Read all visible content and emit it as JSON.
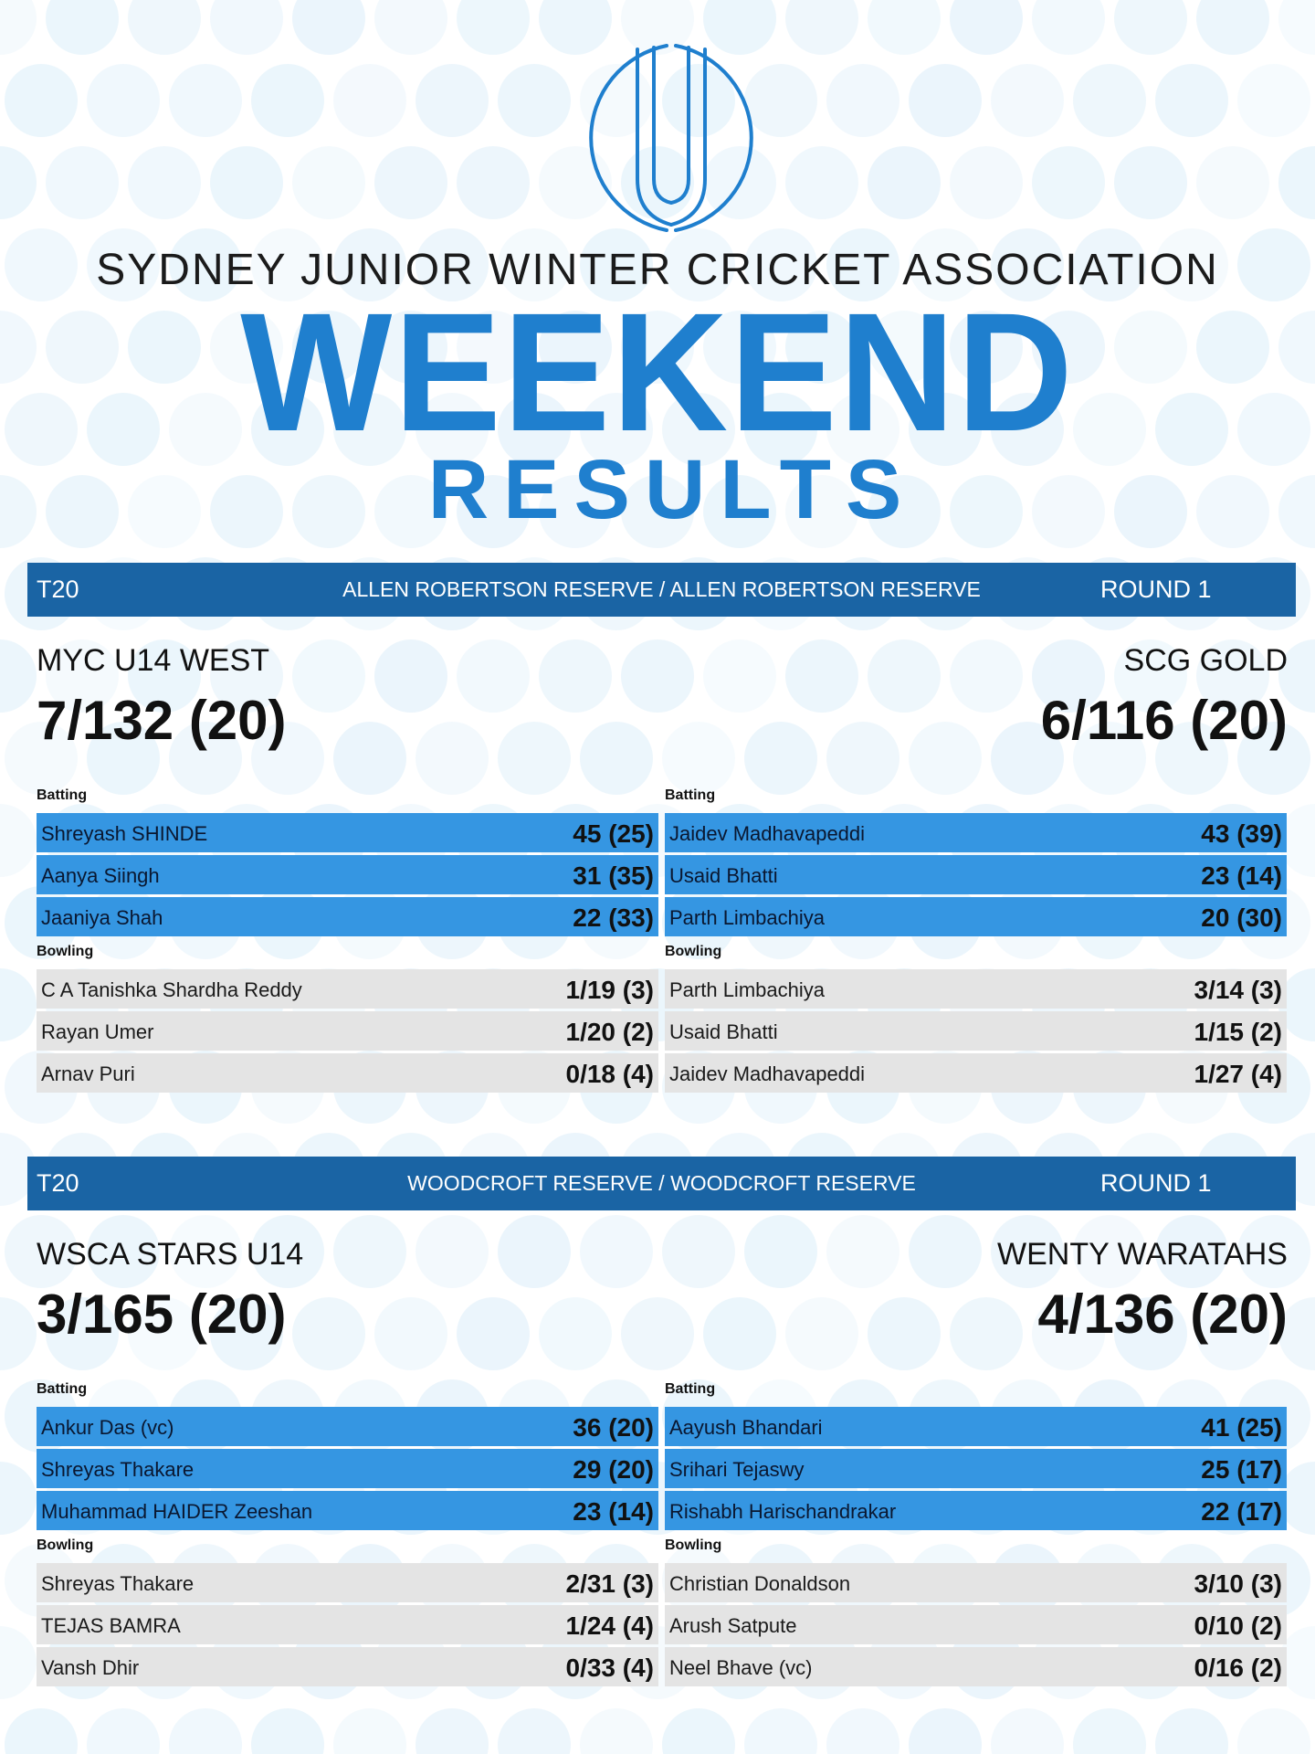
{
  "header": {
    "association": "SYDNEY JUNIOR WINTER CRICKET ASSOCIATION",
    "title": "WEEKEND",
    "subtitle": "RESULTS",
    "logo_icon": "sjwca-monogram-logo"
  },
  "colors": {
    "brand_blue": "#1f7fce",
    "bar_blue": "#1a64a4",
    "batting_row": "#3596e2",
    "bowling_row": "#e4e4e4",
    "dots": "#e6f3fb"
  },
  "matches": [
    {
      "format": "T20",
      "venue": "ALLEN ROBERTSON RESERVE / ALLEN ROBERTSON RESERVE",
      "round": "ROUND 1",
      "team_left": {
        "name": "MYC U14 WEST",
        "score": "7/132 (20)",
        "batting_label": "Batting",
        "bowling_label": "Bowling",
        "batting": [
          {
            "name": "Shreyash SHINDE",
            "figure": "45 (25)"
          },
          {
            "name": "Aanya Siingh",
            "figure": "31 (35)"
          },
          {
            "name": "Jaaniya Shah",
            "figure": "22 (33)"
          }
        ],
        "bowling": [
          {
            "name": "C A Tanishka Shardha Reddy",
            "figure": "1/19 (3)"
          },
          {
            "name": "Rayan Umer",
            "figure": "1/20 (2)"
          },
          {
            "name": "Arnav Puri",
            "figure": "0/18 (4)"
          }
        ]
      },
      "team_right": {
        "name": "SCG GOLD",
        "score": "6/116 (20)",
        "batting_label": "Batting",
        "bowling_label": "Bowling",
        "batting": [
          {
            "name": "Jaidev Madhavapeddi",
            "figure": "43 (39)"
          },
          {
            "name": "Usaid Bhatti",
            "figure": "23 (14)"
          },
          {
            "name": "Parth Limbachiya",
            "figure": "20 (30)"
          }
        ],
        "bowling": [
          {
            "name": "Parth Limbachiya",
            "figure": "3/14 (3)"
          },
          {
            "name": "Usaid Bhatti",
            "figure": "1/15 (2)"
          },
          {
            "name": "Jaidev Madhavapeddi",
            "figure": "1/27 (4)"
          }
        ]
      }
    },
    {
      "format": "T20",
      "venue": "WOODCROFT RESERVE / WOODCROFT RESERVE",
      "round": "ROUND 1",
      "team_left": {
        "name": "WSCA STARS U14",
        "score": "3/165 (20)",
        "batting_label": "Batting",
        "bowling_label": "Bowling",
        "batting": [
          {
            "name": "Ankur Das (vc)",
            "figure": "36 (20)"
          },
          {
            "name": "Shreyas Thakare",
            "figure": "29 (20)"
          },
          {
            "name": "Muhammad HAIDER Zeeshan",
            "figure": "23 (14)"
          }
        ],
        "bowling": [
          {
            "name": "Shreyas Thakare",
            "figure": "2/31 (3)"
          },
          {
            "name": "TEJAS BAMRA",
            "figure": "1/24 (4)"
          },
          {
            "name": "Vansh Dhir",
            "figure": "0/33 (4)"
          }
        ]
      },
      "team_right": {
        "name": "WENTY WARATAHS",
        "score": "4/136 (20)",
        "batting_label": "Batting",
        "bowling_label": "Bowling",
        "batting": [
          {
            "name": "Aayush Bhandari",
            "figure": "41 (25)"
          },
          {
            "name": "Srihari Tejaswy",
            "figure": "25 (17)"
          },
          {
            "name": "Rishabh Harischandrakar",
            "figure": "22 (17)"
          }
        ],
        "bowling": [
          {
            "name": "Christian Donaldson",
            "figure": "3/10 (3)"
          },
          {
            "name": "Arush Satpute",
            "figure": "0/10 (2)"
          },
          {
            "name": "Neel Bhave (vc)",
            "figure": "0/16 (2)"
          }
        ]
      }
    }
  ]
}
